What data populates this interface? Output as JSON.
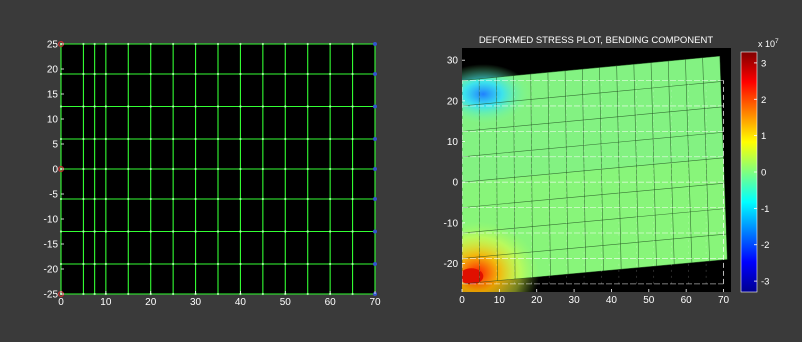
{
  "colors": {
    "figure_bg": "#3a3a3a",
    "axes_bg": "#000000",
    "tick_text": "#ffffff",
    "mesh_line": "#33ff33",
    "constraint_left": "#cc3333",
    "constraint_right": "#3355cc"
  },
  "chart_data": [
    {
      "type": "mesh",
      "title": "",
      "xlabel": "",
      "ylabel": "",
      "xlim": [
        0,
        70
      ],
      "ylim": [
        -25,
        25
      ],
      "xticks": [
        "0",
        "10",
        "20",
        "30",
        "40",
        "50",
        "60",
        "70"
      ],
      "yticks": [
        "25",
        "20",
        "15",
        "10",
        "5",
        "0",
        "-5",
        "-10",
        "-15",
        "-20",
        "-25"
      ],
      "mesh_x": [
        0,
        5,
        7.5,
        10,
        15,
        20,
        25,
        30,
        35,
        40,
        45,
        50,
        55,
        60,
        65,
        70
      ],
      "mesh_y": [
        -25,
        -19,
        -12.5,
        -6,
        0,
        6,
        12.5,
        19,
        25
      ],
      "left_edge_markers_y": [
        -25,
        0,
        25
      ],
      "right_edge_markers_y": [
        -25,
        -19,
        -12.5,
        -6,
        0,
        6,
        12.5,
        19,
        25
      ],
      "grid": false
    },
    {
      "type": "heatmap",
      "title": "DEFORMED STRESS PLOT, BENDING COMPONENT",
      "xlabel": "",
      "ylabel": "",
      "xlim": [
        0,
        72
      ],
      "ylim": [
        -27,
        33
      ],
      "xticks": [
        "0",
        "10",
        "20",
        "30",
        "40",
        "50",
        "60",
        "70"
      ],
      "yticks": [
        "30",
        "20",
        "10",
        "0",
        "-10",
        "-20"
      ],
      "original_mesh": {
        "x_range": [
          0,
          70
        ],
        "y_range": [
          -25,
          25
        ]
      },
      "deformed_corners": {
        "bottom_left": [
          0,
          -25
        ],
        "bottom_right": [
          71,
          -19
        ],
        "top_right": [
          69,
          31
        ],
        "top_left": [
          0,
          25
        ]
      },
      "colorbar": {
        "exponent_label": "x 10",
        "exponent_power": "7",
        "ticks": [
          "3",
          "2",
          "1",
          "0",
          "-1",
          "-2",
          "-3"
        ],
        "range": [
          -3.3,
          3.3
        ],
        "colormap": "jet"
      },
      "stress_extremes": [
        {
          "location": "top-left",
          "value": -2.5
        },
        {
          "location": "bottom-left",
          "value": 3.3
        },
        {
          "location": "interior",
          "value": 0.1
        }
      ]
    }
  ]
}
